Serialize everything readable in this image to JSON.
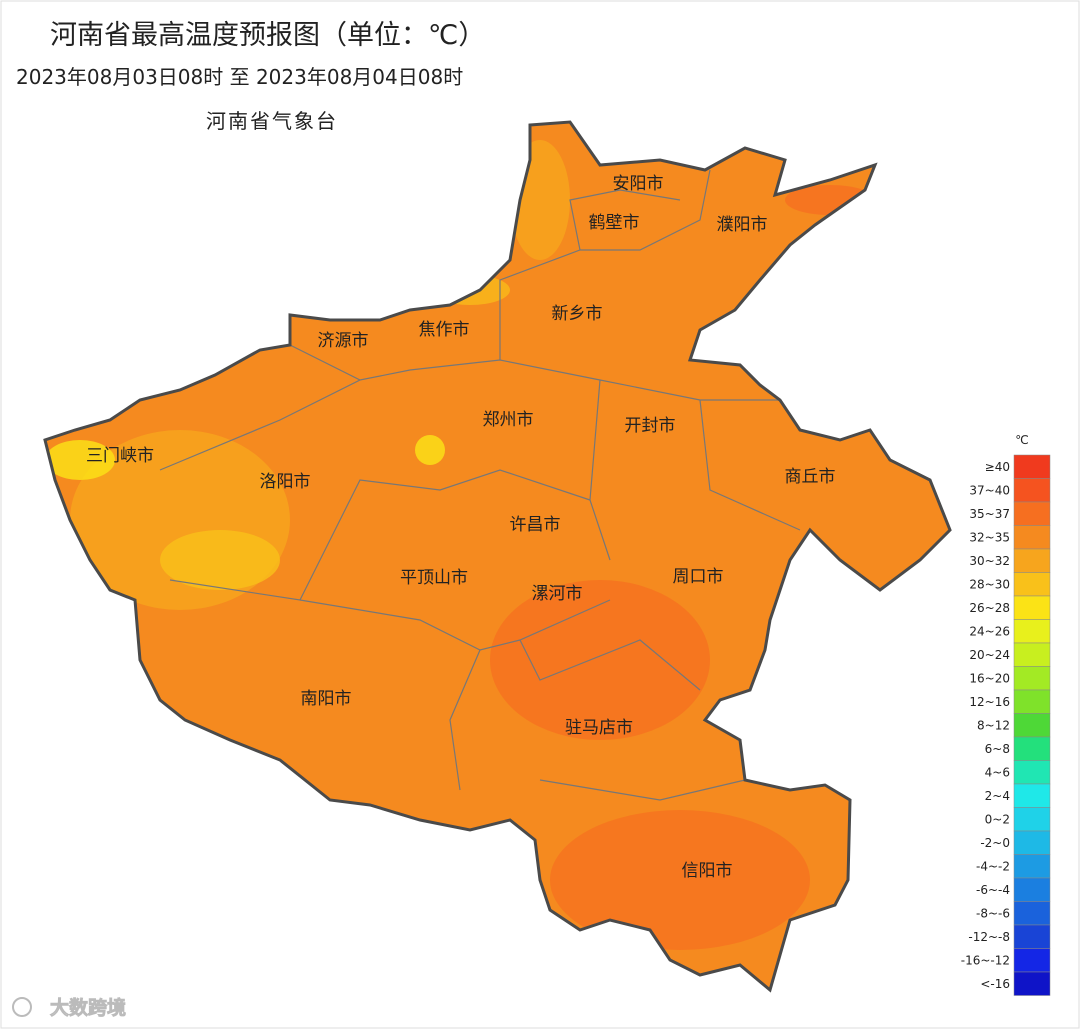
{
  "header": {
    "title": "河南省最高温度预报图（单位：℃）",
    "time_range": "2023年08月03日08时  至  2023年08月04日08时",
    "issuer": "河南省气象台"
  },
  "cities": [
    "安阳市",
    "鹤壁市",
    "濮阳市",
    "新乡市",
    "济源市",
    "焦作市",
    "三门峡市",
    "郑州市",
    "开封市",
    "商丘市",
    "洛阳市",
    "许昌市",
    "平顶山市",
    "漯河市",
    "周口市",
    "南阳市",
    "驻马店市",
    "信阳市"
  ],
  "legend": {
    "unit": "℃",
    "items": [
      {
        "label": "≥40",
        "color": "#f03a1e"
      },
      {
        "label": "37~40",
        "color": "#f5531f"
      },
      {
        "label": "35~37",
        "color": "#f66f20"
      },
      {
        "label": "32~35",
        "color": "#f58a1f"
      },
      {
        "label": "30~32",
        "color": "#f7a51d"
      },
      {
        "label": "28~30",
        "color": "#f9c11a"
      },
      {
        "label": "26~28",
        "color": "#fbe316"
      },
      {
        "label": "24~26",
        "color": "#e8f01c"
      },
      {
        "label": "20~24",
        "color": "#c8ef1f"
      },
      {
        "label": "16~20",
        "color": "#a3ea24"
      },
      {
        "label": "12~16",
        "color": "#7fe22a"
      },
      {
        "label": "8~12",
        "color": "#4ed837"
      },
      {
        "label": "6~8",
        "color": "#23e07c"
      },
      {
        "label": "4~6",
        "color": "#20e6b3"
      },
      {
        "label": "2~4",
        "color": "#1fe8e8"
      },
      {
        "label": "0~2",
        "color": "#1fd2e8"
      },
      {
        "label": "-2~0",
        "color": "#1eb9e6"
      },
      {
        "label": "-4~-2",
        "color": "#1d9be3"
      },
      {
        "label": "-6~-4",
        "color": "#1b7fe0"
      },
      {
        "label": "-8~-6",
        "color": "#1a62dc"
      },
      {
        "label": "-12~-8",
        "color": "#1944d6"
      },
      {
        "label": "-16~-12",
        "color": "#1426e6"
      },
      {
        "label": "<-16",
        "color": "#0f14c8"
      }
    ]
  },
  "watermark": "大数跨境"
}
